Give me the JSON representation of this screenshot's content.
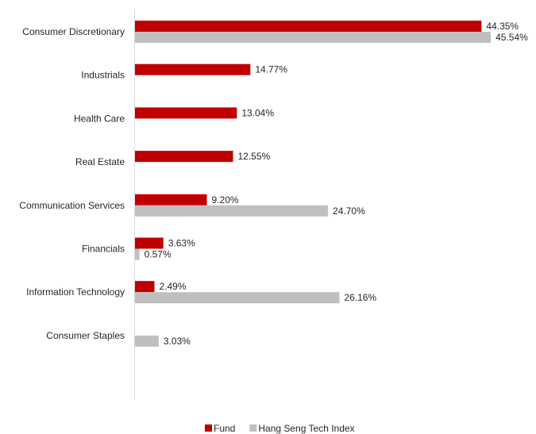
{
  "chart_data": {
    "type": "bar",
    "orientation": "horizontal",
    "categories": [
      "Consumer Discretionary",
      "Industrials",
      "Health Care",
      "Real Estate",
      "Communication Services",
      "Financials",
      "Information Technology",
      "Consumer Staples"
    ],
    "series": [
      {
        "name": "Fund",
        "color": "#c00000",
        "values": [
          44.35,
          14.77,
          13.04,
          12.55,
          9.2,
          3.63,
          2.49,
          null
        ],
        "labels": [
          "44.35%",
          "14.77%",
          "13.04%",
          "12.55%",
          "9.20%",
          "3.63%",
          "2.49%",
          ""
        ]
      },
      {
        "name": "Hang Seng Tech Index",
        "color": "#bfbfbf",
        "values": [
          45.54,
          null,
          null,
          null,
          24.7,
          0.57,
          26.16,
          3.03
        ],
        "labels": [
          "45.54%",
          "",
          "",
          "",
          "24.70%",
          "0.57%",
          "26.16%",
          "3.03%"
        ]
      }
    ],
    "xlim": [
      0,
      50
    ],
    "grid": false,
    "legend_position": "bottom"
  }
}
